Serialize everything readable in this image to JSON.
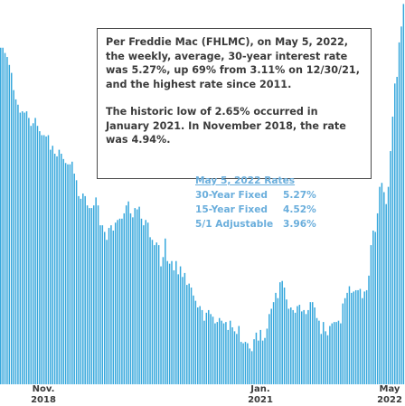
{
  "chart_data": {
    "type": "bar",
    "title": "",
    "xlabel": "",
    "ylabel": "",
    "x_tick_labels": [
      {
        "line1": "Nov.",
        "line2": "2018"
      },
      {
        "line1": "Jan.",
        "line2": "2021"
      },
      {
        "line1": "May",
        "line2": "2022"
      }
    ],
    "ylim": [
      2.4,
      5.3
    ],
    "grid": false,
    "bar_color": "#35a7dc",
    "series": [
      {
        "values": [
          4.94,
          4.94,
          4.9,
          4.87,
          4.81,
          4.75,
          4.62,
          4.55,
          4.51,
          4.45,
          4.46,
          4.45,
          4.46,
          4.41,
          4.35,
          4.37,
          4.41,
          4.35,
          4.31,
          4.28,
          4.28,
          4.27,
          4.28,
          4.17,
          4.2,
          4.14,
          4.12,
          4.17,
          4.14,
          4.1,
          4.07,
          4.06,
          4.06,
          4.08,
          3.99,
          3.94,
          3.82,
          3.8,
          3.84,
          3.82,
          3.75,
          3.73,
          3.73,
          3.75,
          3.81,
          3.75,
          3.6,
          3.6,
          3.55,
          3.49,
          3.58,
          3.6,
          3.56,
          3.62,
          3.64,
          3.65,
          3.65,
          3.69,
          3.75,
          3.78,
          3.69,
          3.66,
          3.73,
          3.72,
          3.74,
          3.65,
          3.6,
          3.64,
          3.62,
          3.51,
          3.49,
          3.45,
          3.47,
          3.45,
          3.29,
          3.36,
          3.5,
          3.33,
          3.31,
          3.33,
          3.26,
          3.33,
          3.23,
          3.29,
          3.21,
          3.24,
          3.15,
          3.16,
          3.13,
          3.07,
          3.03,
          2.98,
          2.99,
          2.96,
          2.88,
          2.94,
          2.96,
          2.93,
          2.91,
          2.86,
          2.87,
          2.9,
          2.88,
          2.86,
          2.87,
          2.81,
          2.88,
          2.83,
          2.8,
          2.78,
          2.84,
          2.72,
          2.71,
          2.72,
          2.71,
          2.67,
          2.65,
          2.74,
          2.79,
          2.73,
          2.81,
          2.73,
          2.75,
          2.82,
          2.93,
          2.97,
          3.02,
          3.09,
          3.05,
          3.17,
          3.18,
          3.13,
          3.04,
          2.97,
          2.98,
          2.96,
          2.94,
          2.99,
          3.0,
          2.95,
          2.96,
          2.93,
          2.96,
          3.02,
          3.02,
          2.98,
          2.9,
          2.88,
          2.78,
          2.87,
          2.8,
          2.77,
          2.84,
          2.86,
          2.87,
          2.87,
          2.88,
          2.86,
          3.01,
          3.05,
          3.09,
          3.14,
          3.09,
          3.1,
          3.11,
          3.11,
          3.12,
          3.05,
          3.1,
          3.11,
          3.22,
          3.45,
          3.56,
          3.55,
          3.69,
          3.89,
          3.92,
          3.85,
          3.76,
          3.89,
          4.16,
          4.42,
          4.67,
          4.72,
          4.98,
          5.1,
          5.27
        ]
      }
    ]
  },
  "info_box": {
    "para1": "Per Freddie Mac (FHLMC), on May 5, 2022, the weekly, average, 30-year interest rate was 5.27%, up 69% from 3.11% on 12/30/21, and the highest rate since 2011.",
    "para2": "The historic low of 2.65% occurred in January 2021. In November 2018, the rate was 4.94%."
  },
  "rates_table": {
    "title": "May 5, 2022 Rates",
    "rows": [
      {
        "name": "30-Year Fixed",
        "value": "5.27%"
      },
      {
        "name": "15-Year Fixed",
        "value": "4.52%"
      },
      {
        "name": "5/1 Adjustable",
        "value": "3.96%"
      }
    ]
  }
}
